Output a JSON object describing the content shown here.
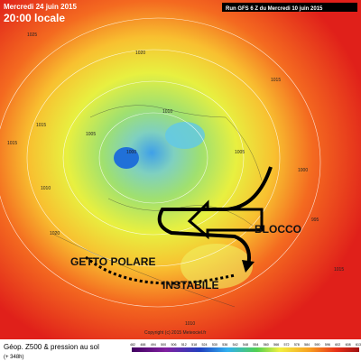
{
  "header": {
    "date": "Mercredi 24 juin 2015",
    "time": "20:00 locale",
    "run": "Run GFS 6 Z du Mercredi 10 juin 2015"
  },
  "annotations": {
    "block": "BLOCCO",
    "jet": "GETTO POLARE",
    "unstable": "INSTABILE"
  },
  "isobar_labels": [
    "1025",
    "1020",
    "1015",
    "1015",
    "1010",
    "1005",
    "1000",
    "1000",
    "1005",
    "1010",
    "1015",
    "1020",
    "995",
    "1010",
    "1015"
  ],
  "footer": {
    "title": "Géop. Z500 & pression au sol",
    "lead": "(+ 348h)",
    "copyright": "Copyright (c) 2015 Meteociel.fr"
  },
  "scale": {
    "labels": [
      "482",
      "488",
      "494",
      "500",
      "506",
      "512",
      "518",
      "524",
      "530",
      "536",
      "542",
      "548",
      "554",
      "560",
      "566",
      "572",
      "578",
      "584",
      "590",
      "596",
      "602",
      "608",
      "613"
    ]
  }
}
